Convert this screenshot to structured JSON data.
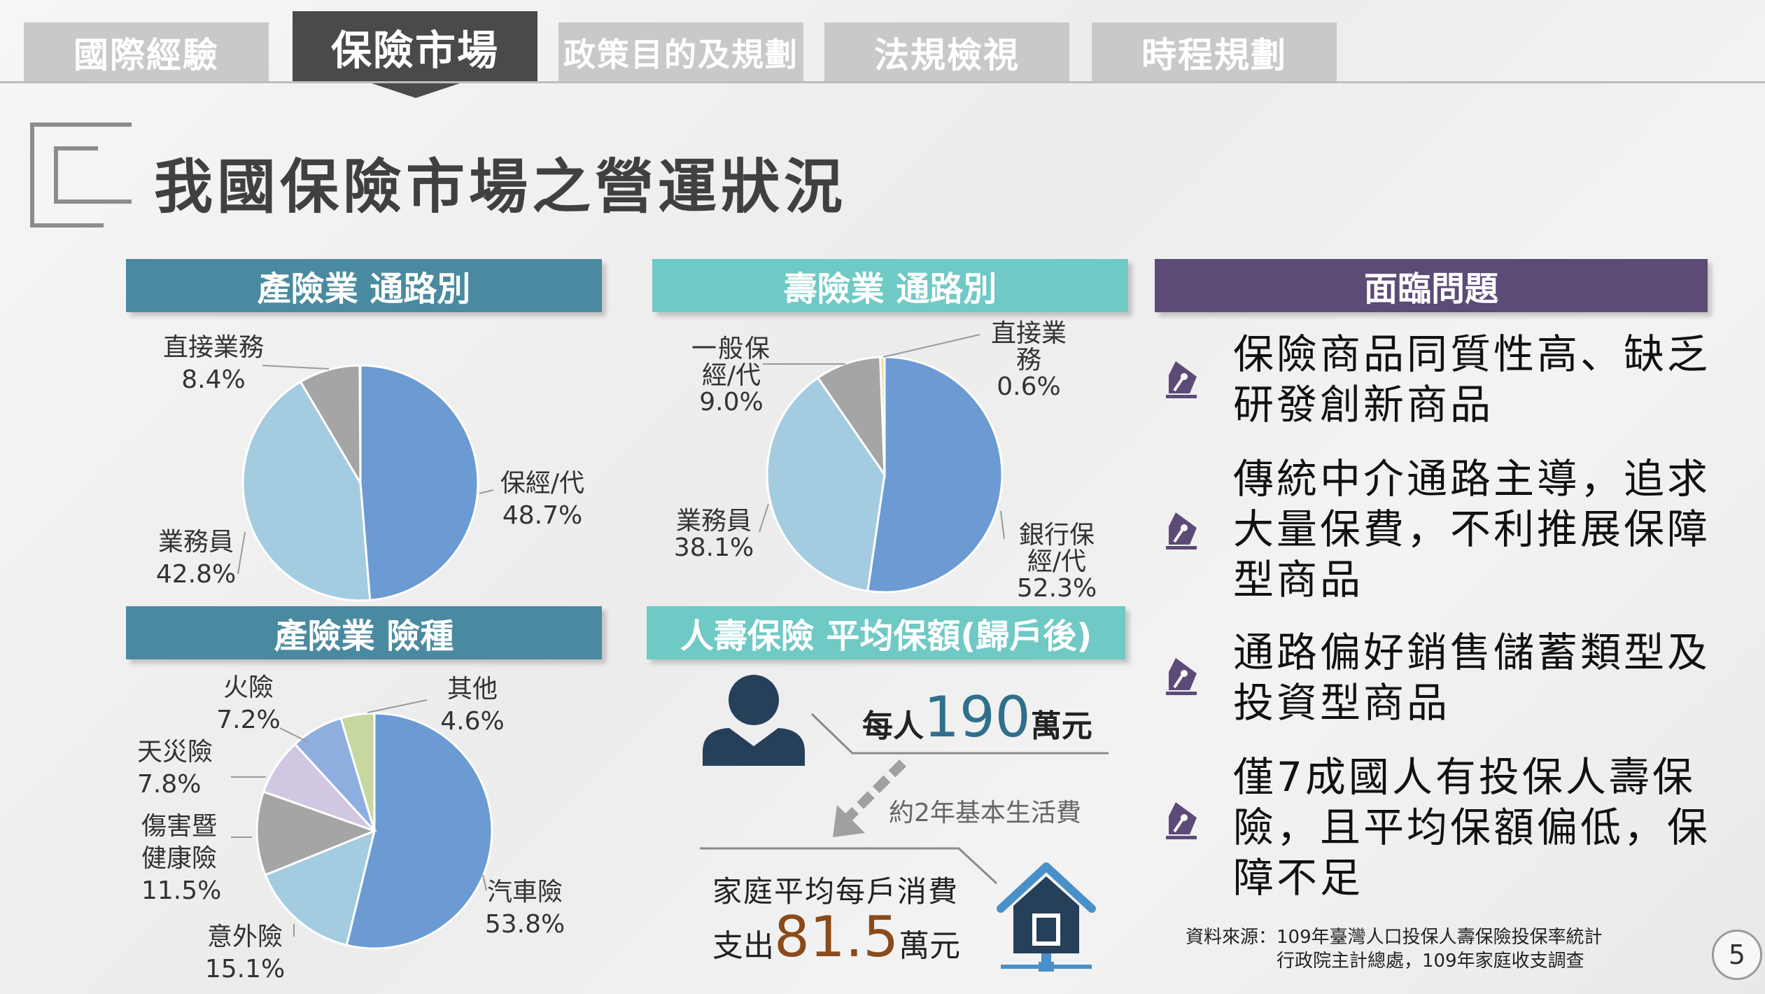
{
  "tabs": [
    "國際經驗",
    "保險市場",
    "政策目的及規劃",
    "法規檢視",
    "時程規劃"
  ],
  "page_title": "我國保險市場之營運狀況",
  "property_channel": {
    "title": "產險業 通路別",
    "slices": [
      {
        "label": "保經/代",
        "value": "48.7%",
        "pct": 48.7,
        "color": "#6b9bd2"
      },
      {
        "label": "業務員",
        "value": "42.8%",
        "pct": 42.8,
        "color": "#a4cce0"
      },
      {
        "label": "直接業務",
        "value": "8.4%",
        "pct": 8.4,
        "color": "#a5a5a5"
      }
    ]
  },
  "life_channel": {
    "title": "壽險業 通路別",
    "slices": [
      {
        "label": "銀行保經/代",
        "value": "52.3%",
        "pct": 52.3,
        "color": "#6b9bd2"
      },
      {
        "label": "業務員",
        "value": "38.1%",
        "pct": 38.1,
        "color": "#a4cce0"
      },
      {
        "label": "一般保經/代",
        "value": "9.0%",
        "pct": 9.0,
        "color": "#a5a5a5"
      },
      {
        "label": "直接業務",
        "value": "0.6%",
        "pct": 0.6,
        "color": "#e8dfa3"
      }
    ]
  },
  "property_types": {
    "title": "產險業 險種",
    "slices": [
      {
        "label": "汽車險",
        "value": "53.8%",
        "pct": 53.8,
        "color": "#6b9bd2"
      },
      {
        "label": "意外險",
        "value": "15.1%",
        "pct": 15.1,
        "color": "#a4cce0"
      },
      {
        "label": "傷害暨健康險",
        "value": "11.5%",
        "pct": 11.5,
        "color": "#a5a5a5"
      },
      {
        "label": "天災險",
        "value": "7.8%",
        "pct": 7.8,
        "color": "#d2c7e2"
      },
      {
        "label": "火險",
        "value": "7.2%",
        "pct": 7.2,
        "color": "#8eaee0"
      },
      {
        "label": "其他",
        "value": "4.6%",
        "pct": 4.6,
        "color": "#c6d8a0"
      }
    ]
  },
  "life_coverage": {
    "title": "人壽保險 平均保額(歸戶後)",
    "per_person_prefix": "每人",
    "per_person_value": "190",
    "per_person_unit": "萬元",
    "note": "約2年基本生活費",
    "household_line1": "家庭平均每戶消費",
    "household_prefix": "支出",
    "household_value": "81.5",
    "household_unit": "萬元"
  },
  "issues": {
    "title": "面臨問題",
    "items": [
      [
        "保險商品同質性高、缺乏",
        "研發創新商品"
      ],
      [
        "傳統中介通路主導，追求",
        "大量保費，不利推展保障",
        "型商品"
      ],
      [
        "通路偏好銷售儲蓄類型及",
        "投資型商品"
      ],
      [
        "僅7成國人有投保人壽保",
        "險，且平均保額偏低，保",
        "障不足"
      ]
    ]
  },
  "source": {
    "line1": "資料來源：109年臺灣人口投保人壽保險投保率統計",
    "line2": "行政院主計總處，109年家庭收支調查"
  },
  "page_number": "5",
  "colors": {
    "teal_dark": "#4a8aa0",
    "teal_light": "#6fc9c4",
    "purple": "#5c4a77",
    "number_blue": "#2f6f8c",
    "number_brown": "#8a4a1a"
  }
}
